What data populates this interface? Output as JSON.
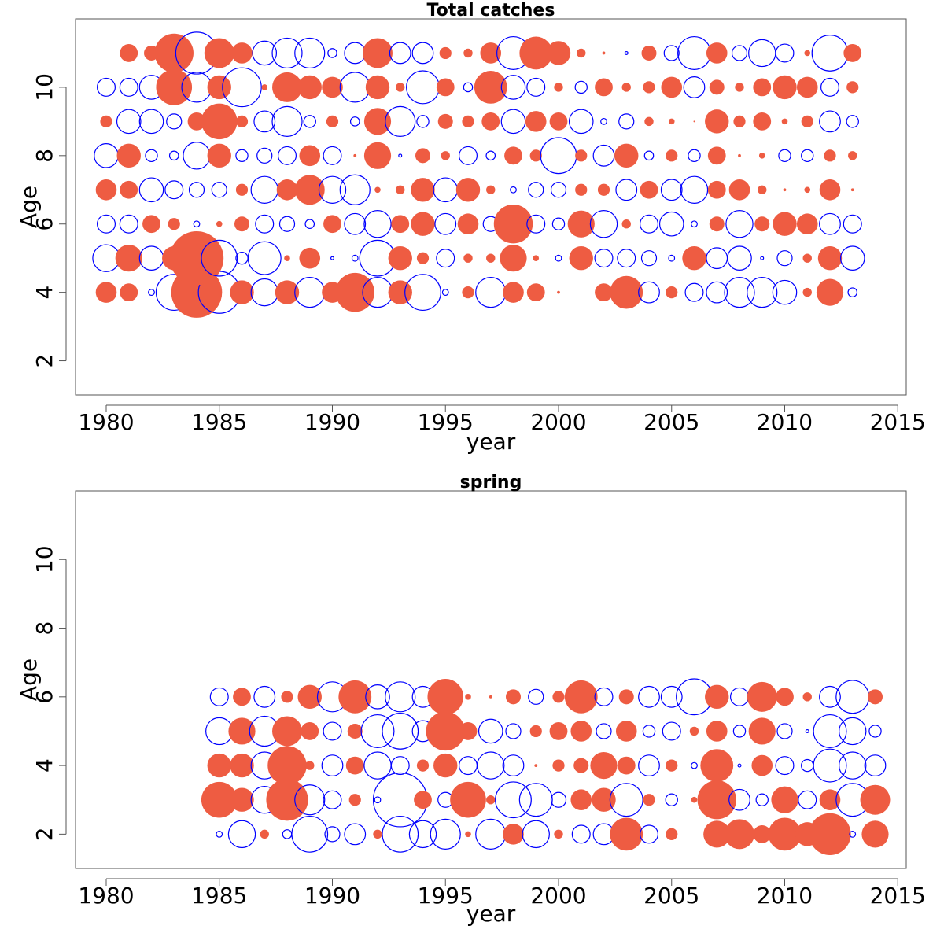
{
  "chart_data": [
    {
      "type": "scatter",
      "title": "Total catches",
      "xlabel": "year",
      "ylabel": "Age",
      "xlim": [
        1980,
        2015
      ],
      "ylim": [
        1,
        12
      ],
      "xticks": [
        1980,
        1985,
        1990,
        1995,
        2000,
        2005,
        2010,
        2015
      ],
      "yticks": [
        2,
        4,
        6,
        8,
        10
      ],
      "encoding": "bubble size = |residual|; filled = positive, open = negative",
      "colors": {
        "positive": "#EE5C42",
        "negative": "#0000FF"
      },
      "years": [
        1980,
        1981,
        1982,
        1983,
        1984,
        1985,
        1986,
        1987,
        1988,
        1989,
        1990,
        1991,
        1992,
        1993,
        1994,
        1995,
        1996,
        1997,
        1998,
        1999,
        2000,
        2001,
        2002,
        2003,
        2004,
        2005,
        2006,
        2007,
        2008,
        2009,
        2010,
        2011,
        2012,
        2013
      ],
      "residuals": {
        "4": [
          0.35,
          0.3,
          -0.1,
          -0.6,
          0.85,
          -0.7,
          0.4,
          -0.45,
          0.4,
          -0.5,
          0.35,
          0.65,
          -0.5,
          0.4,
          -0.6,
          -0.1,
          0.2,
          -0.5,
          0.35,
          0.3,
          0.05,
          0,
          0.3,
          0.55,
          -0.35,
          0.2,
          -0.3,
          -0.35,
          -0.5,
          -0.5,
          -0.4,
          0.15,
          0.45,
          -0.15
        ],
        "5": [
          -0.45,
          0.45,
          -0.4,
          0.4,
          0.9,
          -0.6,
          -0.2,
          -0.55,
          0.1,
          0.35,
          -0.05,
          -0.1,
          -0.6,
          0.4,
          0.2,
          -0.3,
          0.15,
          0.15,
          0.45,
          0.1,
          -0.1,
          0.4,
          -0.3,
          -0.3,
          -0.25,
          -0.1,
          0.4,
          -0.35,
          -0.4,
          -0.05,
          -0.25,
          0.15,
          0.4,
          -0.4
        ],
        "6": [
          -0.3,
          -0.3,
          0.3,
          0.2,
          -0.1,
          0.1,
          0.25,
          -0.3,
          -0.25,
          -0.15,
          0.3,
          -0.35,
          -0.45,
          0.3,
          0.4,
          -0.35,
          0.35,
          -0.25,
          0.65,
          -0.3,
          -0.2,
          0.45,
          -0.45,
          0.15,
          -0.3,
          -0.4,
          -0.1,
          0.25,
          -0.45,
          0.25,
          0.4,
          0.35,
          -0.35,
          -0.3
        ],
        "7": [
          0.35,
          0.3,
          -0.4,
          -0.3,
          -0.25,
          -0.25,
          0.2,
          -0.45,
          0.35,
          0.5,
          -0.45,
          -0.5,
          0.1,
          0.15,
          0.4,
          -0.4,
          0.4,
          0.15,
          -0.1,
          -0.25,
          -0.25,
          0.2,
          0.2,
          -0.35,
          0.3,
          -0.35,
          -0.45,
          0.3,
          0.35,
          0.15,
          0.05,
          0.1,
          0.35,
          0.05
        ],
        "8": [
          -0.4,
          0.4,
          -0.2,
          -0.15,
          -0.45,
          0.4,
          -0.2,
          -0.25,
          -0.3,
          0.35,
          -0.3,
          0.05,
          0.45,
          -0.05,
          0.25,
          0.15,
          -0.3,
          -0.15,
          0.3,
          0.2,
          -0.6,
          0.2,
          -0.35,
          0.4,
          -0.15,
          0.2,
          -0.2,
          0.3,
          0.05,
          0.1,
          -0.2,
          -0.2,
          0.2,
          0.15
        ],
        "9": [
          0.2,
          -0.4,
          -0.4,
          -0.25,
          0.3,
          0.6,
          0.2,
          -0.35,
          -0.5,
          -0.2,
          0.2,
          -0.15,
          0.45,
          -0.5,
          -0.2,
          0.25,
          0.2,
          0.3,
          -0.4,
          0.35,
          0.3,
          -0.4,
          -0.1,
          -0.25,
          0.15,
          0.1,
          0.02,
          0.4,
          0.2,
          0.3,
          0.1,
          0.2,
          -0.35,
          -0.2
        ],
        "10": [
          -0.3,
          -0.3,
          -0.4,
          0.6,
          -0.5,
          0.4,
          -0.65,
          0.1,
          0.5,
          0.4,
          0.35,
          -0.5,
          0.4,
          0.15,
          -0.55,
          0.3,
          -0.15,
          0.55,
          -0.4,
          -0.3,
          0.15,
          -0.2,
          0.3,
          0.15,
          0.2,
          0.35,
          -0.35,
          0.25,
          0.15,
          0.3,
          0.4,
          0.35,
          -0.3,
          0.2
        ],
        "11": [
          0,
          0.3,
          0.25,
          0.65,
          -0.7,
          0.5,
          0.35,
          -0.4,
          -0.5,
          -0.5,
          -0.15,
          -0.35,
          0.5,
          -0.35,
          -0.35,
          0.2,
          0.15,
          0.35,
          -0.55,
          0.55,
          0.4,
          0.15,
          0.05,
          -0.05,
          0.25,
          -0.25,
          -0.55,
          0.35,
          -0.25,
          -0.45,
          -0.3,
          0.1,
          -0.6,
          0.3
        ]
      }
    },
    {
      "type": "scatter",
      "title": "spring",
      "xlabel": "year",
      "ylabel": "Age",
      "xlim": [
        1980,
        2015
      ],
      "ylim": [
        1,
        12
      ],
      "xticks": [
        1980,
        1985,
        1990,
        1995,
        2000,
        2005,
        2010,
        2015
      ],
      "yticks": [
        2,
        4,
        6,
        8,
        10
      ],
      "encoding": "bubble size = |residual|; filled = positive, open = negative",
      "colors": {
        "positive": "#EE5C42",
        "negative": "#0000FF"
      },
      "years": [
        1985,
        1986,
        1987,
        1988,
        1989,
        1990,
        1991,
        1992,
        1993,
        1994,
        1995,
        1996,
        1997,
        1998,
        1999,
        2000,
        2001,
        2002,
        2003,
        2004,
        2005,
        2006,
        2007,
        2008,
        2009,
        2010,
        2011,
        2012,
        2013,
        2014
      ],
      "residuals": {
        "2": [
          -0.1,
          -0.45,
          0.15,
          -0.15,
          -0.6,
          -0.25,
          -0.35,
          0.15,
          -0.6,
          -0.45,
          -0.5,
          0.1,
          -0.5,
          0.35,
          -0.45,
          0.15,
          -0.3,
          -0.35,
          0.55,
          -0.3,
          0.2,
          0,
          0.45,
          0.5,
          0.3,
          0.55,
          0.4,
          0.7,
          -0.1,
          0.45
        ],
        "3": [
          0.6,
          0.4,
          -0.45,
          0.7,
          -0.5,
          -0.3,
          0.2,
          -0.1,
          -0.9,
          0.3,
          -0.25,
          0.6,
          0.15,
          -0.6,
          -0.55,
          -0.25,
          0.35,
          0.4,
          -0.55,
          0.2,
          -0.2,
          0.1,
          0.65,
          -0.35,
          -0.2,
          0.45,
          -0.3,
          0.35,
          -0.55,
          0.5
        ],
        "4": [
          0.4,
          0.4,
          -0.45,
          0.65,
          0.15,
          -0.35,
          0.3,
          -0.45,
          -0.3,
          0.2,
          0.4,
          -0.3,
          -0.45,
          -0.35,
          0.05,
          0.2,
          0.25,
          0.45,
          0.3,
          -0.35,
          0.2,
          -0.1,
          0.55,
          -0.05,
          0.35,
          -0.3,
          -0.2,
          -0.55,
          -0.45,
          -0.35
        ],
        "5": [
          -0.45,
          0.45,
          -0.5,
          0.5,
          0.3,
          -0.3,
          0.25,
          -0.55,
          -0.6,
          -0.35,
          0.65,
          0.3,
          -0.4,
          -0.25,
          0.2,
          0.3,
          0.35,
          -0.25,
          0.35,
          -0.2,
          -0.3,
          0.15,
          0.35,
          -0.2,
          0.45,
          -0.25,
          -0.05,
          -0.55,
          -0.45,
          -0.2
        ],
        "6": [
          -0.3,
          0.3,
          -0.35,
          0.2,
          0.4,
          -0.5,
          0.55,
          -0.4,
          -0.5,
          -0.35,
          0.6,
          0.1,
          0.05,
          0.25,
          -0.25,
          0.2,
          0.55,
          -0.3,
          0.25,
          -0.35,
          -0.35,
          -0.6,
          0.4,
          -0.3,
          0.5,
          0.3,
          0.15,
          -0.35,
          -0.55,
          0.25
        ]
      }
    }
  ]
}
